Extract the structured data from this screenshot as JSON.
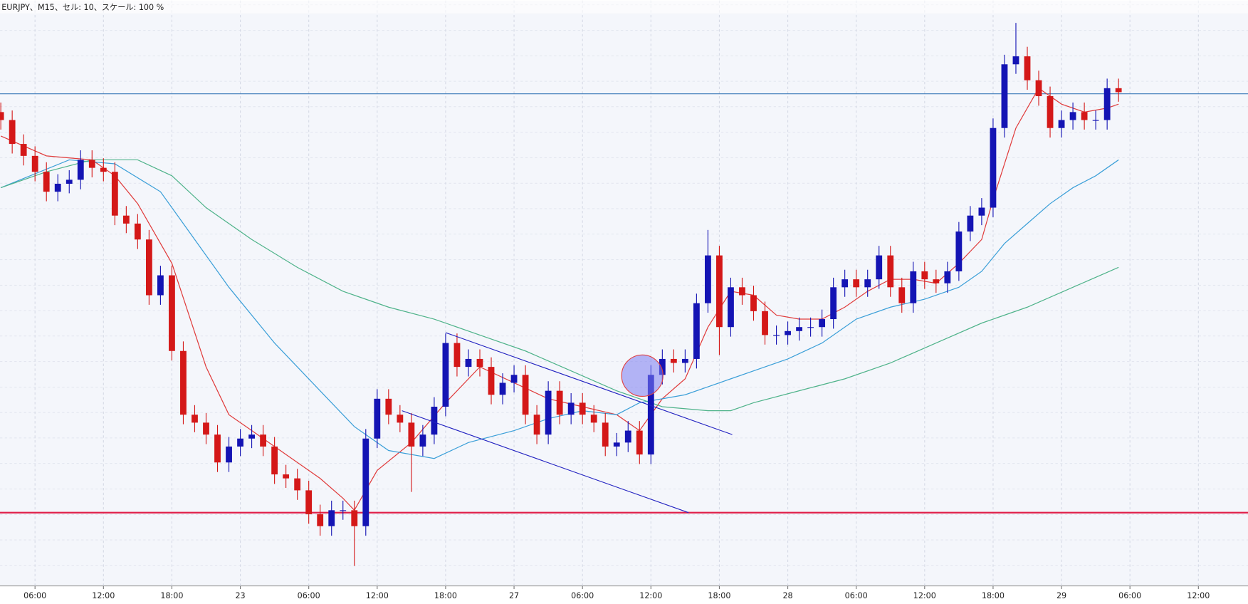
{
  "chart_data": {
    "type": "candlestick",
    "title": "EURJPY、M15、セル: 10、スケール: 100 %",
    "up_color": "#1414b4",
    "down_color": "#d41818",
    "xlim": [
      -0.07,
      109.35
    ],
    "ylim": [
      0,
      735
    ],
    "grid": true,
    "xticks": [
      {
        "value": 3,
        "label": "06:00"
      },
      {
        "value": 9,
        "label": "12:00"
      },
      {
        "value": 15,
        "label": "18:00"
      },
      {
        "value": 21,
        "label": "23"
      },
      {
        "value": 27,
        "label": "06:00"
      },
      {
        "value": 33,
        "label": "12:00"
      },
      {
        "value": 39,
        "label": "18:00"
      },
      {
        "value": 45,
        "label": "27"
      },
      {
        "value": 51,
        "label": "06:00"
      },
      {
        "value": 57,
        "label": "12:00"
      },
      {
        "value": 63,
        "label": "18:00"
      },
      {
        "value": 69,
        "label": "28"
      },
      {
        "value": 75,
        "label": "06:00"
      },
      {
        "value": 81,
        "label": "12:00"
      },
      {
        "value": 87,
        "label": "18:00"
      },
      {
        "value": 93,
        "label": "29"
      },
      {
        "value": 99,
        "label": "06:00"
      },
      {
        "value": 105,
        "label": "12:00"
      }
    ],
    "x": [
      0,
      1,
      2,
      3,
      4,
      5,
      6,
      7,
      8,
      9,
      10,
      11,
      12,
      13,
      14,
      15,
      16,
      17,
      18,
      19,
      20,
      21,
      22,
      23,
      24,
      25,
      26,
      27,
      28,
      29,
      30,
      31,
      32,
      33,
      34,
      35,
      36,
      37,
      38,
      39,
      40,
      41,
      42,
      43,
      44,
      45,
      46,
      47,
      48,
      49,
      50,
      51,
      52,
      53,
      54,
      55,
      56,
      57,
      58,
      59,
      60,
      61,
      62,
      63,
      64,
      65,
      66,
      67,
      68,
      69,
      70,
      71,
      72,
      73,
      74,
      75,
      76,
      77,
      78,
      79,
      80,
      81,
      82,
      83,
      84,
      85,
      86,
      87,
      88,
      89,
      90,
      91,
      92,
      93,
      94,
      95,
      96,
      97,
      98
    ],
    "open": [
      595,
      585,
      555,
      540,
      520,
      495,
      505,
      510,
      535,
      525,
      520,
      465,
      455,
      435,
      365,
      390,
      295,
      215,
      205,
      190,
      155,
      175,
      185,
      190,
      175,
      140,
      135,
      120,
      90,
      75,
      95,
      95,
      75,
      185,
      235,
      215,
      205,
      175,
      190,
      225,
      305,
      275,
      285,
      275,
      240,
      255,
      265,
      215,
      190,
      245,
      215,
      230,
      215,
      205,
      175,
      180,
      195,
      165,
      265,
      285,
      280,
      285,
      355,
      415,
      325,
      375,
      365,
      345,
      315,
      315,
      320,
      325,
      325,
      335,
      375,
      385,
      375,
      385,
      415,
      375,
      355,
      395,
      385,
      380,
      395,
      445,
      465,
      475,
      575,
      655,
      665,
      635,
      615,
      575,
      585,
      595,
      585,
      585,
      625
    ],
    "high": [
      607,
      597,
      567,
      552,
      532,
      517,
      522,
      547,
      547,
      537,
      532,
      477,
      467,
      447,
      402,
      402,
      307,
      227,
      217,
      202,
      187,
      197,
      202,
      202,
      187,
      152,
      147,
      132,
      102,
      107,
      107,
      107,
      197,
      247,
      247,
      227,
      217,
      202,
      237,
      317,
      317,
      297,
      297,
      287,
      267,
      277,
      277,
      227,
      257,
      257,
      242,
      242,
      227,
      217,
      192,
      207,
      207,
      277,
      297,
      297,
      297,
      367,
      447,
      427,
      387,
      387,
      377,
      357,
      327,
      332,
      337,
      337,
      347,
      387,
      397,
      397,
      397,
      427,
      427,
      387,
      407,
      407,
      397,
      407,
      457,
      477,
      487,
      587,
      667,
      707,
      677,
      647,
      627,
      597,
      607,
      607,
      597,
      637,
      637
    ],
    "low": [
      573,
      543,
      528,
      508,
      483,
      483,
      493,
      498,
      513,
      508,
      453,
      443,
      423,
      353,
      353,
      283,
      203,
      193,
      178,
      143,
      143,
      163,
      173,
      163,
      128,
      123,
      108,
      78,
      63,
      63,
      83,
      25,
      63,
      173,
      203,
      193,
      118,
      163,
      178,
      213,
      263,
      263,
      263,
      228,
      228,
      243,
      203,
      178,
      178,
      203,
      203,
      203,
      193,
      163,
      163,
      168,
      153,
      153,
      253,
      268,
      268,
      273,
      343,
      290,
      313,
      353,
      333,
      303,
      303,
      303,
      308,
      313,
      313,
      323,
      363,
      363,
      363,
      373,
      363,
      343,
      343,
      373,
      368,
      368,
      383,
      433,
      453,
      463,
      563,
      643,
      623,
      603,
      563,
      563,
      573,
      573,
      573,
      573,
      608
    ],
    "close": [
      585,
      555,
      540,
      520,
      495,
      505,
      510,
      535,
      525,
      520,
      465,
      455,
      435,
      365,
      390,
      295,
      215,
      205,
      190,
      155,
      175,
      185,
      190,
      175,
      140,
      135,
      120,
      90,
      75,
      95,
      95,
      75,
      185,
      235,
      215,
      205,
      175,
      190,
      225,
      305,
      275,
      285,
      275,
      240,
      255,
      265,
      215,
      190,
      245,
      215,
      230,
      215,
      205,
      175,
      180,
      195,
      165,
      265,
      285,
      280,
      285,
      355,
      415,
      325,
      375,
      365,
      345,
      315,
      315,
      320,
      325,
      325,
      335,
      375,
      385,
      375,
      385,
      415,
      375,
      355,
      395,
      385,
      380,
      395,
      445,
      465,
      475,
      575,
      655,
      665,
      635,
      615,
      575,
      585,
      595,
      585,
      585,
      625,
      620
    ],
    "lines": [
      {
        "color": "#e03c3c",
        "x": [
          0,
          4,
          8,
          10,
          12,
          15,
          18,
          20,
          22,
          25,
          28,
          30,
          31,
          33,
          36,
          39,
          42,
          45,
          48,
          51,
          54,
          56,
          58,
          60,
          62,
          64,
          66,
          68,
          70,
          72,
          74,
          76,
          78,
          80,
          82,
          84,
          86,
          87,
          89,
          91,
          93,
          95,
          97,
          98
        ],
        "values": [
          565,
          540,
          535,
          515,
          480,
          405,
          275,
          215,
          195,
          165,
          135,
          110,
          95,
          145,
          180,
          230,
          275,
          255,
          235,
          225,
          215,
          195,
          235,
          260,
          325,
          370,
          365,
          340,
          335,
          335,
          350,
          370,
          385,
          385,
          380,
          405,
          435,
          485,
          575,
          625,
          605,
          595,
          600,
          605
        ]
      },
      {
        "color": "#3b9fd8",
        "x": [
          0,
          6,
          10,
          14,
          17,
          20,
          24,
          28,
          31,
          34,
          38,
          41,
          45,
          48,
          51,
          54,
          56,
          58,
          60,
          62,
          64,
          66,
          69,
          72,
          75,
          78,
          81,
          84,
          86,
          88,
          90,
          92,
          94,
          96,
          98
        ],
        "values": [
          500,
          535,
          530,
          495,
          435,
          375,
          305,
          245,
          200,
          170,
          160,
          180,
          195,
          210,
          220,
          215,
          230,
          235,
          240,
          250,
          260,
          270,
          285,
          305,
          335,
          350,
          360,
          375,
          395,
          430,
          455,
          480,
          500,
          515,
          535
        ]
      },
      {
        "color": "#4fb38a",
        "x": [
          0,
          4,
          8,
          12,
          15,
          18,
          22,
          26,
          30,
          34,
          38,
          42,
          46,
          50,
          54,
          58,
          62,
          64,
          66,
          70,
          74,
          78,
          82,
          86,
          90,
          94,
          98
        ],
        "values": [
          500,
          520,
          535,
          535,
          515,
          475,
          435,
          400,
          370,
          350,
          335,
          315,
          295,
          270,
          245,
          225,
          220,
          220,
          230,
          245,
          260,
          280,
          305,
          330,
          350,
          375,
          400
        ]
      }
    ],
    "levels": [
      {
        "value": 618,
        "color": "#3a78b8"
      },
      {
        "value": 92,
        "color": "#e0204a"
      }
    ]
  }
}
